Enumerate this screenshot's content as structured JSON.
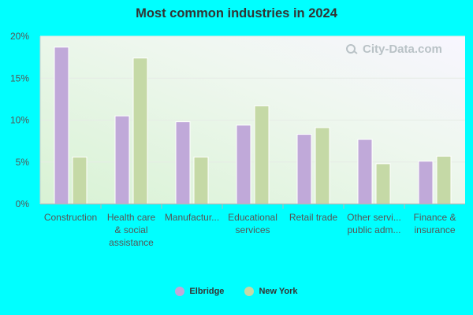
{
  "chart_data": {
    "type": "bar",
    "title": "Most common industries in 2024",
    "categories": [
      [
        "Construction"
      ],
      [
        "Health care",
        "& social",
        "assistance"
      ],
      [
        "Manufactur..."
      ],
      [
        "Educational",
        "services"
      ],
      [
        "Retail trade"
      ],
      [
        "Other servi...",
        "public adm..."
      ],
      [
        "Finance &",
        "insurance"
      ]
    ],
    "series": [
      {
        "name": "Elbridge",
        "color": "#c0a9d9",
        "values": [
          18.7,
          10.5,
          9.8,
          9.4,
          8.3,
          7.7,
          5.1
        ]
      },
      {
        "name": "New York",
        "color": "#c5d9a6",
        "values": [
          5.6,
          17.4,
          5.6,
          11.7,
          9.1,
          4.8,
          5.7
        ]
      }
    ],
    "ylim": [
      0,
      20
    ],
    "yticks": [
      0,
      5,
      10,
      15,
      20
    ],
    "ytick_labels": [
      "0%",
      "5%",
      "10%",
      "15%",
      "20%"
    ],
    "grid": true,
    "legend": "bottom-center"
  },
  "watermark": "City-Data.com"
}
